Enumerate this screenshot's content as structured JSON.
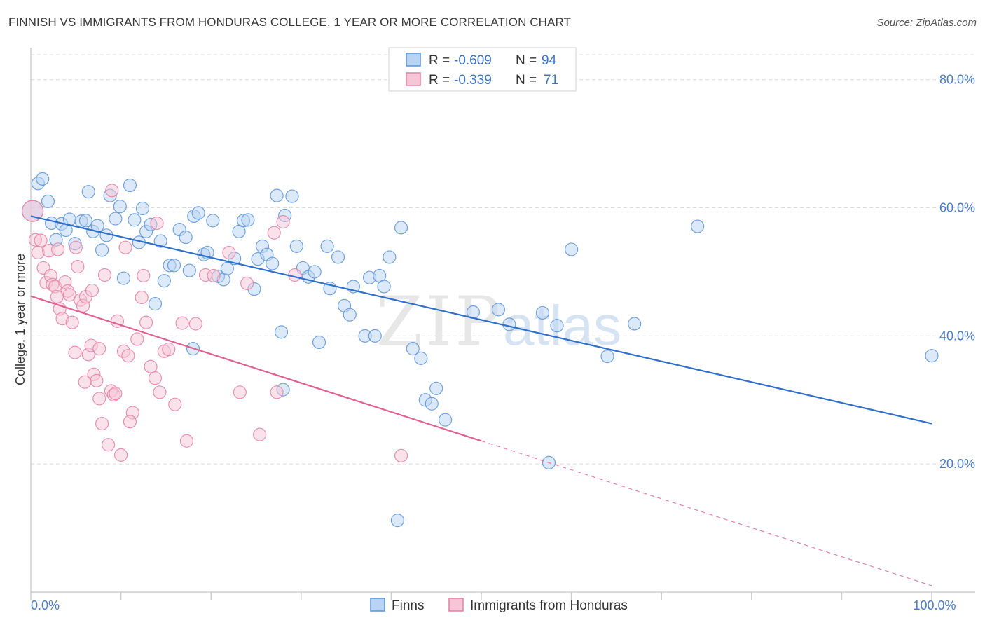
{
  "title": "FINNISH VS IMMIGRANTS FROM HONDURAS COLLEGE, 1 YEAR OR MORE CORRELATION CHART",
  "source": "Source: ZipAtlas.com",
  "colors": {
    "finns": "#5b93d9",
    "finns_fill": "#b9d3f2",
    "finns_line": "#2e6fcc",
    "honduras": "#e57fa3",
    "honduras_fill": "#f6c5d6",
    "honduras_line": "#e0608f",
    "grid": "#dcdcdc",
    "tick_label": "#4a7cc7"
  },
  "legend": {
    "row1": {
      "r_label": "R = ",
      "r_value": "-0.609",
      "n_label": "N = ",
      "n_value": "94"
    },
    "row2": {
      "r_label": "R = ",
      "r_value": "-0.339",
      "n_label": "N = ",
      "n_value": "71"
    }
  },
  "bottom_legend": {
    "finns": "Finns",
    "honduras": "Immigrants from Honduras"
  },
  "watermark": {
    "zip": "ZIP",
    "atlas": "atlas"
  },
  "chart_data": {
    "type": "scatter",
    "ylabel": "College, 1 year or more",
    "xlabel": "",
    "xlim": [
      0,
      100
    ],
    "ylim": [
      0,
      85
    ],
    "x_tick_labels": [
      {
        "value": 0,
        "label": "0.0%"
      },
      {
        "value": 100,
        "label": "100.0%"
      }
    ],
    "y_ticks": [
      {
        "value": 20,
        "label": "20.0%"
      },
      {
        "value": 40,
        "label": "40.0%"
      },
      {
        "value": 60,
        "label": "60.0%"
      },
      {
        "value": 80,
        "label": "80.0%"
      }
    ],
    "grid": true,
    "series": [
      {
        "name": "Finns",
        "trend": {
          "x0": 0,
          "y0": 58.7,
          "x1": 100,
          "y1": 26.3
        },
        "points": [
          [
            0.2,
            59.5
          ],
          [
            0.8,
            63.8
          ],
          [
            1.3,
            64.5
          ],
          [
            1.9,
            61.0
          ],
          [
            2.3,
            57.6
          ],
          [
            2.8,
            55.0
          ],
          [
            3.4,
            57.5
          ],
          [
            3.9,
            56.5
          ],
          [
            4.3,
            58.2
          ],
          [
            4.9,
            54.4
          ],
          [
            5.6,
            57.9
          ],
          [
            6.1,
            58.0
          ],
          [
            6.4,
            62.5
          ],
          [
            6.9,
            56.3
          ],
          [
            7.4,
            57.2
          ],
          [
            7.9,
            53.4
          ],
          [
            8.4,
            55.7
          ],
          [
            8.8,
            61.9
          ],
          [
            9.4,
            58.3
          ],
          [
            9.9,
            60.2
          ],
          [
            10.3,
            49.0
          ],
          [
            11.0,
            63.5
          ],
          [
            11.5,
            58.1
          ],
          [
            12.0,
            54.6
          ],
          [
            12.4,
            59.9
          ],
          [
            12.8,
            56.3
          ],
          [
            13.3,
            57.4
          ],
          [
            13.8,
            45.0
          ],
          [
            14.4,
            54.8
          ],
          [
            14.8,
            48.6
          ],
          [
            15.4,
            51.0
          ],
          [
            15.9,
            51.0
          ],
          [
            16.5,
            56.6
          ],
          [
            17.2,
            55.4
          ],
          [
            17.6,
            50.2
          ],
          [
            18.1,
            58.7
          ],
          [
            18.6,
            59.2
          ],
          [
            19.2,
            52.7
          ],
          [
            19.6,
            53.0
          ],
          [
            20.2,
            58.0
          ],
          [
            20.8,
            49.3
          ],
          [
            21.4,
            48.8
          ],
          [
            21.8,
            50.5
          ],
          [
            22.6,
            52.1
          ],
          [
            23.1,
            56.3
          ],
          [
            23.6,
            58.0
          ],
          [
            24.1,
            58.1
          ],
          [
            24.8,
            47.3
          ],
          [
            25.2,
            52.0
          ],
          [
            25.7,
            54.0
          ],
          [
            26.2,
            52.7
          ],
          [
            26.8,
            51.3
          ],
          [
            27.3,
            61.9
          ],
          [
            27.8,
            40.6
          ],
          [
            28.2,
            58.8
          ],
          [
            29.0,
            61.8
          ],
          [
            29.5,
            54.0
          ],
          [
            30.2,
            50.6
          ],
          [
            30.8,
            49.2
          ],
          [
            31.5,
            50.0
          ],
          [
            32.0,
            39.0
          ],
          [
            32.9,
            54.0
          ],
          [
            33.2,
            47.4
          ],
          [
            34.1,
            52.3
          ],
          [
            34.8,
            44.7
          ],
          [
            35.4,
            43.3
          ],
          [
            35.8,
            47.7
          ],
          [
            37.1,
            40.0
          ],
          [
            37.6,
            49.1
          ],
          [
            38.2,
            40.0
          ],
          [
            38.7,
            49.4
          ],
          [
            39.2,
            47.7
          ],
          [
            39.8,
            52.3
          ],
          [
            40.7,
            11.2
          ],
          [
            41.1,
            56.9
          ],
          [
            42.4,
            38.0
          ],
          [
            43.3,
            36.5
          ],
          [
            43.8,
            30.0
          ],
          [
            44.5,
            29.4
          ],
          [
            45.0,
            31.8
          ],
          [
            46.0,
            26.9
          ],
          [
            49.1,
            43.7
          ],
          [
            51.9,
            44.1
          ],
          [
            53.1,
            41.8
          ],
          [
            56.8,
            43.6
          ],
          [
            57.5,
            20.2
          ],
          [
            58.4,
            41.6
          ],
          [
            60.0,
            53.5
          ],
          [
            64.0,
            36.8
          ],
          [
            67.0,
            41.9
          ],
          [
            74.0,
            57.1
          ],
          [
            100.0,
            36.9
          ],
          [
            18.0,
            38.0
          ],
          [
            28.0,
            31.6
          ]
        ]
      },
      {
        "name": "Immigrants from Honduras",
        "trend": {
          "x0": 0,
          "y0": 46.2,
          "x1": 50,
          "y1": 23.6
        },
        "trend_extension": {
          "x0": 50,
          "y0": 23.6,
          "x1": 100,
          "y1": 1.0
        },
        "points": [
          [
            0.2,
            59.5
          ],
          [
            0.5,
            55.0
          ],
          [
            0.8,
            53.0
          ],
          [
            1.1,
            54.9
          ],
          [
            1.4,
            50.6
          ],
          [
            1.7,
            48.3
          ],
          [
            2.0,
            53.3
          ],
          [
            2.2,
            49.4
          ],
          [
            2.4,
            48.0
          ],
          [
            2.7,
            47.7
          ],
          [
            2.9,
            46.1
          ],
          [
            3.2,
            44.2
          ],
          [
            3.5,
            42.7
          ],
          [
            3.8,
            48.4
          ],
          [
            4.1,
            47.0
          ],
          [
            4.3,
            46.4
          ],
          [
            4.6,
            42.1
          ],
          [
            4.9,
            37.4
          ],
          [
            5.2,
            50.8
          ],
          [
            5.5,
            45.6
          ],
          [
            5.8,
            44.7
          ],
          [
            6.1,
            46.1
          ],
          [
            6.4,
            37.1
          ],
          [
            6.7,
            38.5
          ],
          [
            7.0,
            34.0
          ],
          [
            7.3,
            33.0
          ],
          [
            7.6,
            30.2
          ],
          [
            7.9,
            26.3
          ],
          [
            8.2,
            49.5
          ],
          [
            8.6,
            23.0
          ],
          [
            8.9,
            31.4
          ],
          [
            9.2,
            30.8
          ],
          [
            9.6,
            42.3
          ],
          [
            10.0,
            21.4
          ],
          [
            10.3,
            37.6
          ],
          [
            10.8,
            36.9
          ],
          [
            11.3,
            28.0
          ],
          [
            11.8,
            39.5
          ],
          [
            12.3,
            46.0
          ],
          [
            12.8,
            42.1
          ],
          [
            13.3,
            35.2
          ],
          [
            13.8,
            33.4
          ],
          [
            14.3,
            31.2
          ],
          [
            14.8,
            37.6
          ],
          [
            15.3,
            37.9
          ],
          [
            16.0,
            29.3
          ],
          [
            16.8,
            42.0
          ],
          [
            17.3,
            23.6
          ],
          [
            18.3,
            41.9
          ],
          [
            19.4,
            49.5
          ],
          [
            20.3,
            49.4
          ],
          [
            22.0,
            53.0
          ],
          [
            23.2,
            31.2
          ],
          [
            25.4,
            24.6
          ],
          [
            27.3,
            31.2
          ],
          [
            28.0,
            57.8
          ],
          [
            29.3,
            49.5
          ],
          [
            9.0,
            62.7
          ],
          [
            14.0,
            57.6
          ],
          [
            24.0,
            48.2
          ],
          [
            27.0,
            56.1
          ],
          [
            5.0,
            53.8
          ],
          [
            3.0,
            53.5
          ],
          [
            10.5,
            53.8
          ],
          [
            6.8,
            47.1
          ],
          [
            7.6,
            38.0
          ],
          [
            11.0,
            26.6
          ],
          [
            6.0,
            32.8
          ],
          [
            41.1,
            21.3
          ],
          [
            9.4,
            31.0
          ],
          [
            12.5,
            49.4
          ]
        ]
      }
    ]
  }
}
